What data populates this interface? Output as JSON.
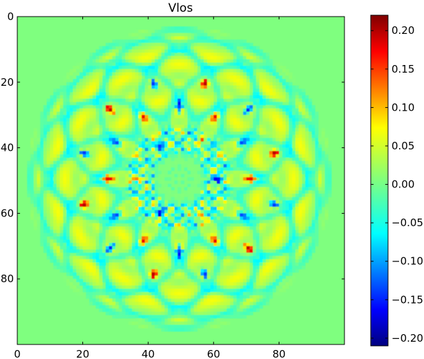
{
  "chart_data": {
    "type": "heatmap",
    "title": "Vlos",
    "colormap": "jet",
    "grid": false,
    "x_ticks": [
      0,
      20,
      40,
      60,
      80
    ],
    "y_ticks": [
      0,
      20,
      40,
      60,
      80
    ],
    "x_range": [
      0,
      100
    ],
    "y_range": [
      0,
      100
    ],
    "y_axis_direction": "downward",
    "value_range": [
      -0.21,
      0.22
    ],
    "colorbar_ticks": [
      "0.20",
      "0.15",
      "0.10",
      "0.05",
      "0.00",
      "−0.05",
      "−0.10",
      "−0.15",
      "−0.20"
    ],
    "colorbar_tick_values": [
      0.2,
      0.15,
      0.1,
      0.05,
      0.0,
      -0.05,
      -0.1,
      -0.15,
      -0.2
    ],
    "colorbar_placement": "right",
    "grid_size": 100,
    "center": [
      49.5,
      49.5
    ],
    "pattern": {
      "description": "12-fold symmetric rosette of overlapping rings; 0 outside radius ~47",
      "outer_radius": 47,
      "inner_core_radius": 8,
      "symmetry": 12,
      "ring_radii": [
        14,
        22,
        30,
        38,
        45
      ],
      "lobes": [
        {
          "angle_deg": 0,
          "radius": 22,
          "value": 0.14
        },
        {
          "angle_deg": 30,
          "radius": 22,
          "value": -0.16
        },
        {
          "angle_deg": 60,
          "radius": 22,
          "value": 0.14
        },
        {
          "angle_deg": 90,
          "radius": 22,
          "value": -0.16
        },
        {
          "angle_deg": 120,
          "radius": 22,
          "value": 0.14
        },
        {
          "angle_deg": 150,
          "radius": 22,
          "value": -0.16
        },
        {
          "angle_deg": 180,
          "radius": 22,
          "value": 0.14
        },
        {
          "angle_deg": 210,
          "radius": 22,
          "value": -0.16
        },
        {
          "angle_deg": 240,
          "radius": 22,
          "value": 0.14
        },
        {
          "angle_deg": 270,
          "radius": 22,
          "value": -0.16
        },
        {
          "angle_deg": 300,
          "radius": 22,
          "value": 0.14
        },
        {
          "angle_deg": 330,
          "radius": 22,
          "value": -0.16
        },
        {
          "angle_deg": 15,
          "radius": 30,
          "value": -0.18
        },
        {
          "angle_deg": 45,
          "radius": 30,
          "value": 0.16
        },
        {
          "angle_deg": 75,
          "radius": 30,
          "value": -0.18
        },
        {
          "angle_deg": 105,
          "radius": 30,
          "value": 0.16
        },
        {
          "angle_deg": 135,
          "radius": 30,
          "value": -0.18
        },
        {
          "angle_deg": 165,
          "radius": 30,
          "value": 0.16
        },
        {
          "angle_deg": 195,
          "radius": 30,
          "value": -0.18
        },
        {
          "angle_deg": 225,
          "radius": 30,
          "value": 0.16
        },
        {
          "angle_deg": 255,
          "radius": 30,
          "value": -0.18
        },
        {
          "angle_deg": 285,
          "radius": 30,
          "value": 0.16
        },
        {
          "angle_deg": 315,
          "radius": 30,
          "value": -0.18
        },
        {
          "angle_deg": 345,
          "radius": 30,
          "value": 0.16
        },
        {
          "angle_deg": 0,
          "radius": 12,
          "value": -0.12
        },
        {
          "angle_deg": 60,
          "radius": 12,
          "value": 0.11
        },
        {
          "angle_deg": 120,
          "radius": 12,
          "value": -0.12
        },
        {
          "angle_deg": 180,
          "radius": 12,
          "value": 0.11
        },
        {
          "angle_deg": 240,
          "radius": 12,
          "value": -0.12
        },
        {
          "angle_deg": 300,
          "radius": 12,
          "value": 0.11
        }
      ]
    }
  }
}
